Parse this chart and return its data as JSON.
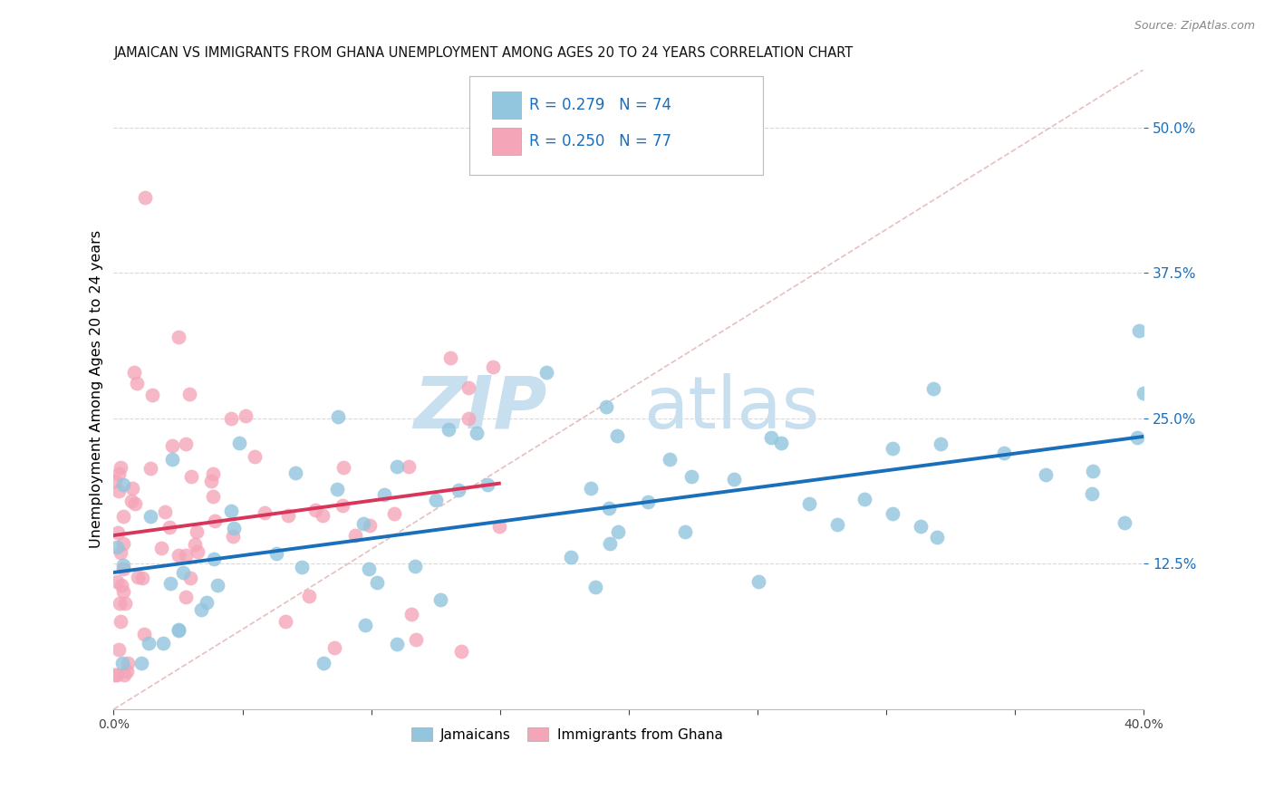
{
  "title": "JAMAICAN VS IMMIGRANTS FROM GHANA UNEMPLOYMENT AMONG AGES 20 TO 24 YEARS CORRELATION CHART",
  "source": "Source: ZipAtlas.com",
  "ylabel": "Unemployment Among Ages 20 to 24 years",
  "right_ytick_vals": [
    0.5,
    0.375,
    0.25,
    0.125
  ],
  "legend_blue_label": "Jamaicans",
  "legend_pink_label": "Immigrants from Ghana",
  "blue_color": "#92c5de",
  "pink_color": "#f4a5b8",
  "blue_trend_color": "#1a6fbb",
  "pink_trend_color": "#d9345a",
  "diag_line_color": "#e0b0b0",
  "grid_color": "#d8d8d8",
  "xlim": [
    0.0,
    0.4
  ],
  "ylim": [
    0.0,
    0.55
  ],
  "legend_text_color": "#1a6fbb",
  "legend_N_color": "#1a3a6e"
}
